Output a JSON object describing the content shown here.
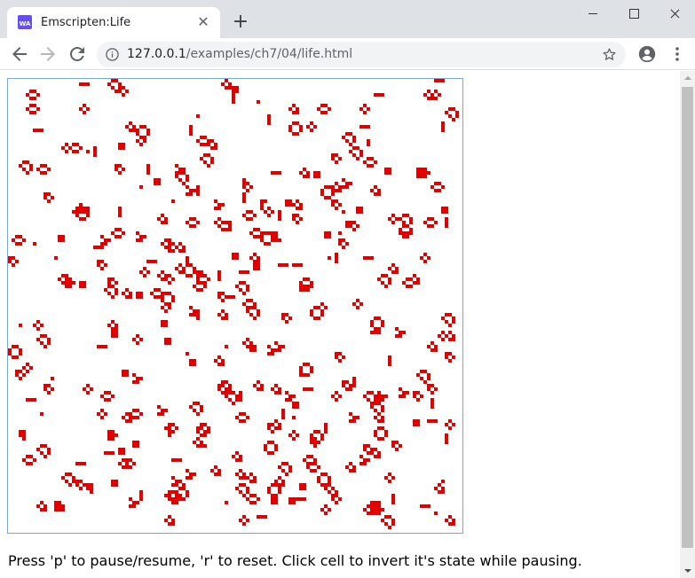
{
  "tab": {
    "title": "Emscripten:Life",
    "favicon_text": "WA"
  },
  "address_bar": {
    "host": "127.0.0.1",
    "path": "/examples/ch7/04/life.html"
  },
  "page": {
    "help_text": "Press 'p' to pause/resume, 'r' to reset. Click cell to invert it's state while pausing."
  },
  "colors": {
    "cell": "#e00000",
    "canvas_border": "#7aa7d9",
    "tab_strip": "#dee1e6"
  },
  "icons": [
    "back-icon",
    "forward-icon",
    "reload-icon",
    "info-icon",
    "star-icon",
    "profile-icon",
    "menu-icon",
    "close-icon",
    "plus-icon"
  ]
}
